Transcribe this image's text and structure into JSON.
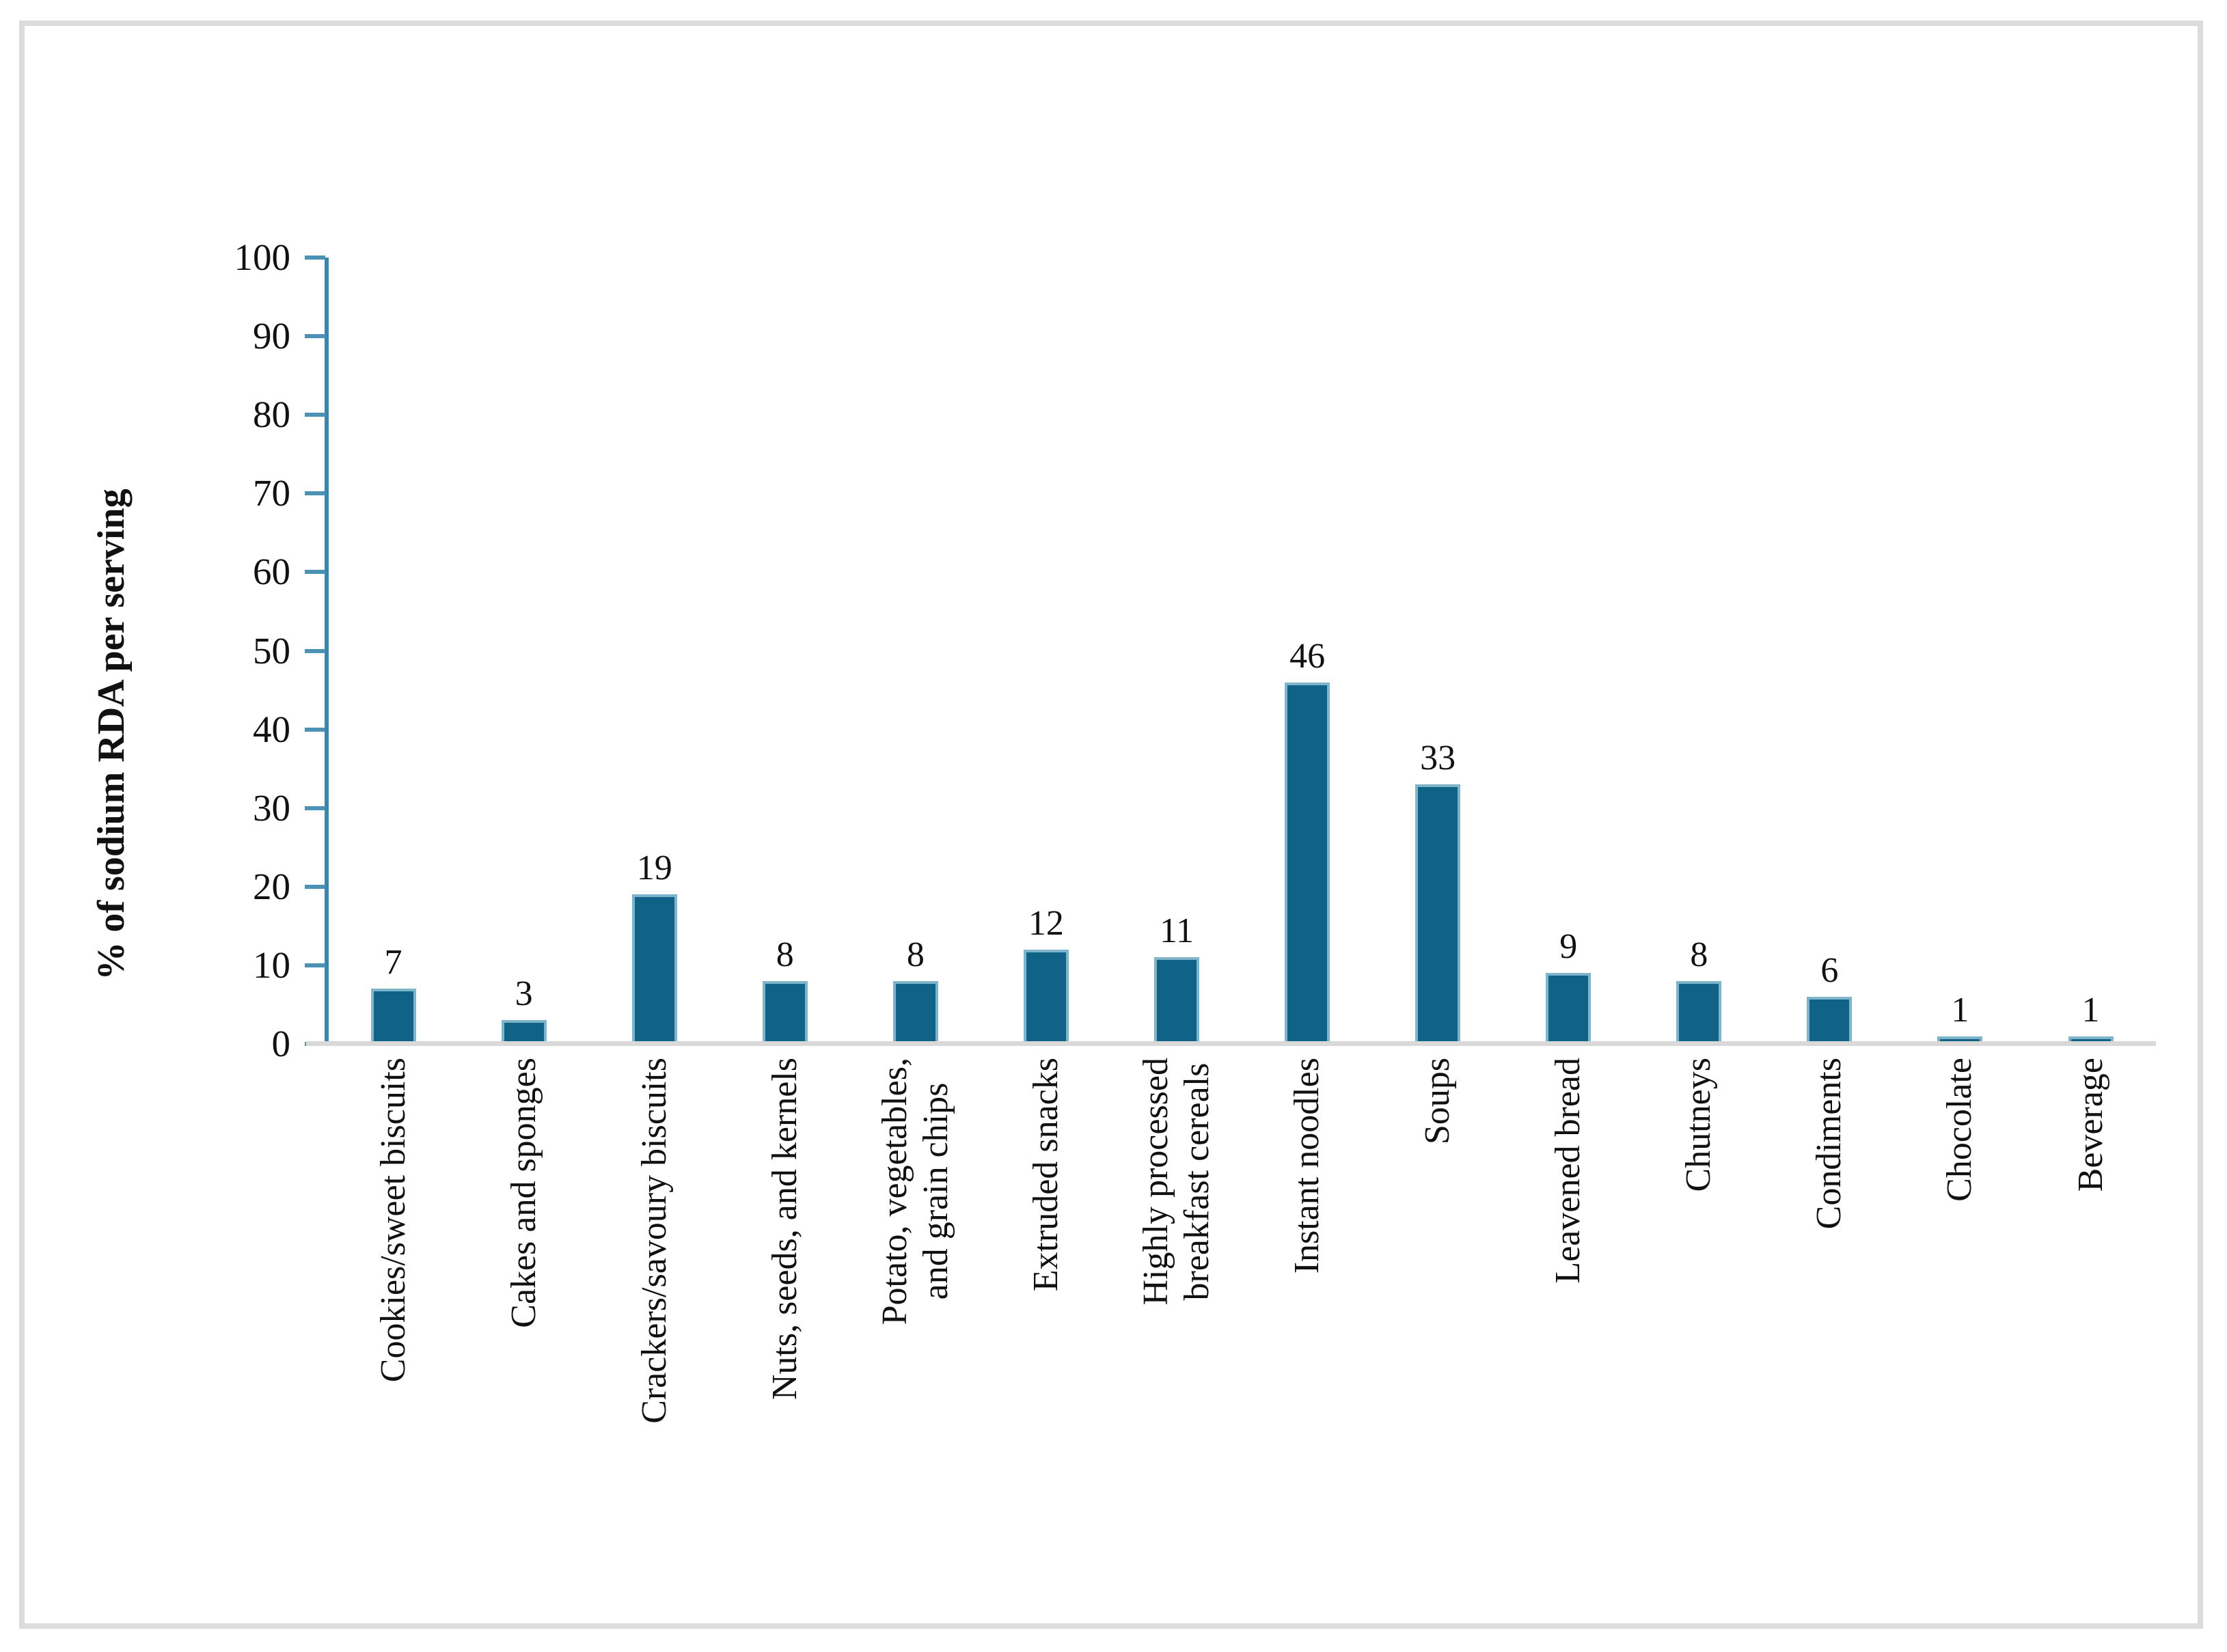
{
  "chart_data": {
    "type": "bar",
    "title": "",
    "xlabel": "",
    "ylabel": "% of sodium RDA per serving",
    "ylim": [
      0,
      100
    ],
    "yticks": [
      0,
      10,
      20,
      30,
      40,
      50,
      60,
      70,
      80,
      90,
      100
    ],
    "grid": false,
    "legend": "none",
    "value_labels_shown": true,
    "categories": [
      "Cookies/sweet biscuits",
      "Cakes and sponges",
      "Crackers/savoury biscuits",
      "Nuts, seeds, and kernels",
      "Potato, vegetables,\nand grain chips",
      "Extruded snacks",
      "Highly processed\nbreakfast cereals",
      "Instant noodles",
      "Soups",
      "Leavened bread",
      "Chutneys",
      "Condiments",
      "Chocolate",
      "Beverage"
    ],
    "values": [
      7,
      3,
      19,
      8,
      8,
      12,
      11,
      46,
      33,
      9,
      8,
      6,
      1,
      1
    ],
    "colors": {
      "bar_fill": "#106386",
      "bar_edge": "#7FB5CB",
      "axis": "#3A86AA",
      "tick": "#4B92B4",
      "baseline": "#D9D9D9",
      "text": "#111111",
      "frame_border": "#DCDCDC",
      "background": "#FFFFFF"
    }
  }
}
